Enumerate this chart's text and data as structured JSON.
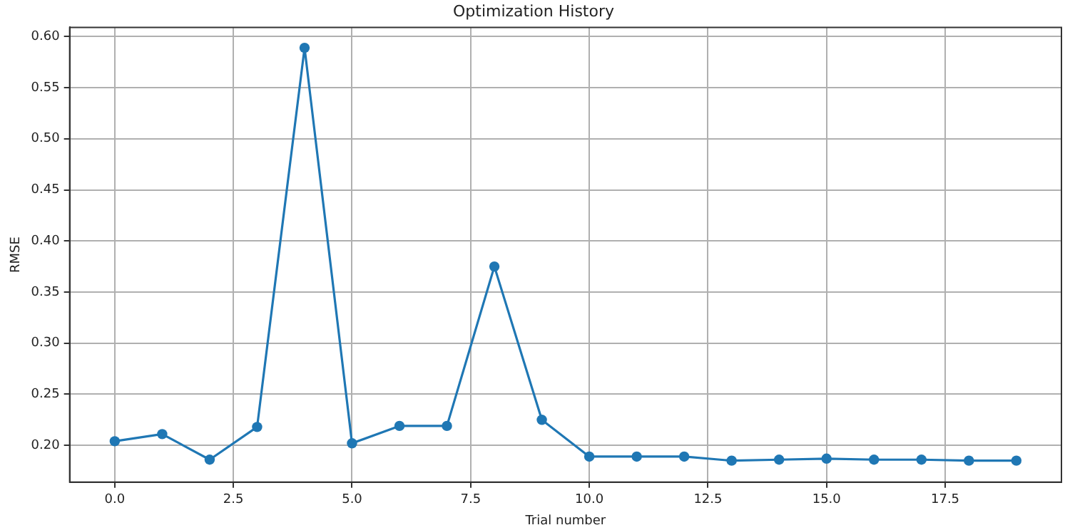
{
  "chart_data": {
    "type": "line",
    "title": "Optimization History",
    "xlabel": "Trial number",
    "ylabel": "RMSE",
    "x": [
      0,
      1,
      2,
      3,
      4,
      5,
      6,
      7,
      8,
      9,
      10,
      11,
      12,
      13,
      14,
      15,
      16,
      17,
      18,
      19
    ],
    "series": [
      {
        "color": "#1f77b4",
        "values": [
          0.204,
          0.211,
          0.186,
          0.218,
          0.589,
          0.202,
          0.219,
          0.219,
          0.375,
          0.225,
          0.189,
          0.189,
          0.189,
          0.185,
          0.186,
          0.187,
          0.186,
          0.186,
          0.185,
          0.185
        ]
      }
    ],
    "xlim": [
      -0.95,
      19.95
    ],
    "xticks": [
      {
        "value": 0,
        "label": "0.0"
      },
      {
        "value": 2.5,
        "label": "2.5"
      },
      {
        "value": 5,
        "label": "5.0"
      },
      {
        "value": 7.5,
        "label": "7.5"
      },
      {
        "value": 10,
        "label": "10.0"
      },
      {
        "value": 12.5,
        "label": "12.5"
      },
      {
        "value": 15,
        "label": "15.0"
      },
      {
        "value": 17.5,
        "label": "17.5"
      }
    ],
    "ylim": [
      0.164,
      0.609
    ],
    "yticks": [
      {
        "value": 0.2,
        "label": "0.20"
      },
      {
        "value": 0.25,
        "label": "0.25"
      },
      {
        "value": 0.3,
        "label": "0.30"
      },
      {
        "value": 0.35,
        "label": "0.35"
      },
      {
        "value": 0.4,
        "label": "0.40"
      },
      {
        "value": 0.45,
        "label": "0.45"
      },
      {
        "value": 0.5,
        "label": "0.50"
      },
      {
        "value": 0.55,
        "label": "0.55"
      },
      {
        "value": 0.6,
        "label": "0.60"
      }
    ],
    "grid": true,
    "legend": false,
    "marker": "circle",
    "line_style": "solid"
  }
}
